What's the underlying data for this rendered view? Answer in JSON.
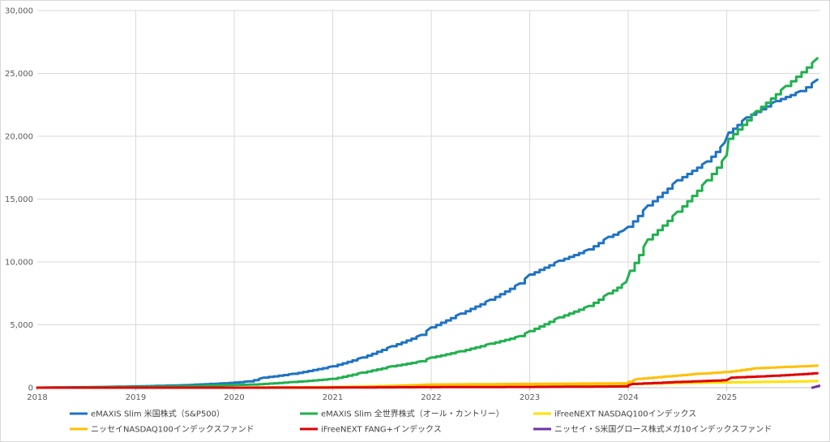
{
  "chart_data": {
    "type": "line",
    "grid": true,
    "legend_position": "bottom",
    "ylim": [
      0,
      30000
    ],
    "y_ticks": [
      0,
      5000,
      10000,
      15000,
      20000,
      25000,
      30000
    ],
    "y_tick_labels": [
      "0",
      "5,000",
      "10,000",
      "15,000",
      "20,000",
      "25,000",
      "30,000"
    ],
    "xlim": [
      2018,
      2025.95
    ],
    "x_ticks": [
      2018,
      2019,
      2020,
      2021,
      2022,
      2023,
      2024,
      2025
    ],
    "x_tick_labels": [
      "2018",
      "2019",
      "2020",
      "2021",
      "2022",
      "2023",
      "2024",
      "2025"
    ],
    "series": [
      {
        "name": "eMAXIS Slim 米国株式（S&P500）",
        "color": "#1f73c4",
        "x": [
          2018.0,
          2018.5,
          2019.0,
          2019.5,
          2019.9,
          2020.15,
          2020.3,
          2020.6,
          2021.0,
          2021.3,
          2021.6,
          2021.9,
          2022.0,
          2022.3,
          2022.6,
          2022.9,
          2023.0,
          2023.3,
          2023.6,
          2023.8,
          2023.95,
          2024.0,
          2024.2,
          2024.5,
          2024.8,
          2024.98,
          2025.02,
          2025.2,
          2025.5,
          2025.75,
          2025.92
        ],
        "values": [
          0,
          40,
          100,
          200,
          350,
          500,
          800,
          1100,
          1700,
          2400,
          3300,
          4200,
          4800,
          5900,
          7000,
          8300,
          9000,
          10100,
          11000,
          12000,
          12500,
          12800,
          14500,
          16500,
          18000,
          19500,
          20300,
          21500,
          22800,
          23600,
          24500
        ]
      },
      {
        "name": "eMAXIS Slim 全世界株式（オール・カントリー）",
        "color": "#21b04f",
        "x": [
          2018.0,
          2018.5,
          2019.0,
          2019.5,
          2019.9,
          2020.2,
          2020.6,
          2021.0,
          2021.3,
          2021.6,
          2021.9,
          2022.0,
          2022.3,
          2022.6,
          2022.9,
          2023.0,
          2023.3,
          2023.6,
          2023.8,
          2023.98,
          2024.02,
          2024.2,
          2024.5,
          2024.8,
          2025.0,
          2025.02,
          2025.3,
          2025.6,
          2025.92
        ],
        "values": [
          0,
          30,
          60,
          120,
          200,
          250,
          450,
          700,
          1200,
          1700,
          2100,
          2400,
          2900,
          3500,
          4100,
          4500,
          5600,
          6500,
          7500,
          8400,
          9300,
          11800,
          14000,
          16500,
          18500,
          19800,
          22000,
          24000,
          26200
        ]
      },
      {
        "name": "iFreeNEXT NASDAQ100インデックス",
        "color": "#ffe100",
        "x": [
          2018.0,
          2020.0,
          2021.0,
          2022.0,
          2023.0,
          2023.95,
          2024.3,
          2024.6,
          2025.0,
          2025.5,
          2025.92
        ],
        "values": [
          0,
          0,
          50,
          180,
          240,
          280,
          330,
          380,
          420,
          470,
          520
        ]
      },
      {
        "name": "ニッセイNASDAQ100インデックスファンド",
        "color": "#ffc000",
        "x": [
          2018.0,
          2021.0,
          2021.5,
          2022.0,
          2023.0,
          2023.95,
          2024.1,
          2024.4,
          2024.7,
          2025.0,
          2025.3,
          2025.6,
          2025.92
        ],
        "values": [
          0,
          0,
          120,
          250,
          300,
          350,
          700,
          900,
          1100,
          1250,
          1550,
          1650,
          1750
        ]
      },
      {
        "name": "iFreeNEXT FANG+インデックス",
        "color": "#e00000",
        "x": [
          2018.0,
          2020.0,
          2021.0,
          2022.0,
          2023.0,
          2023.95,
          2024.05,
          2024.5,
          2025.0,
          2025.05,
          2025.5,
          2025.92
        ],
        "values": [
          0,
          0,
          10,
          40,
          60,
          100,
          300,
          450,
          600,
          800,
          950,
          1150
        ]
      },
      {
        "name": "ニッセイ・S米国グロース株式メガ10インデックスファンド",
        "color": "#7030a0",
        "x": [
          2025.87,
          2025.9,
          2025.94
        ],
        "values": [
          0,
          60,
          150
        ]
      }
    ]
  }
}
